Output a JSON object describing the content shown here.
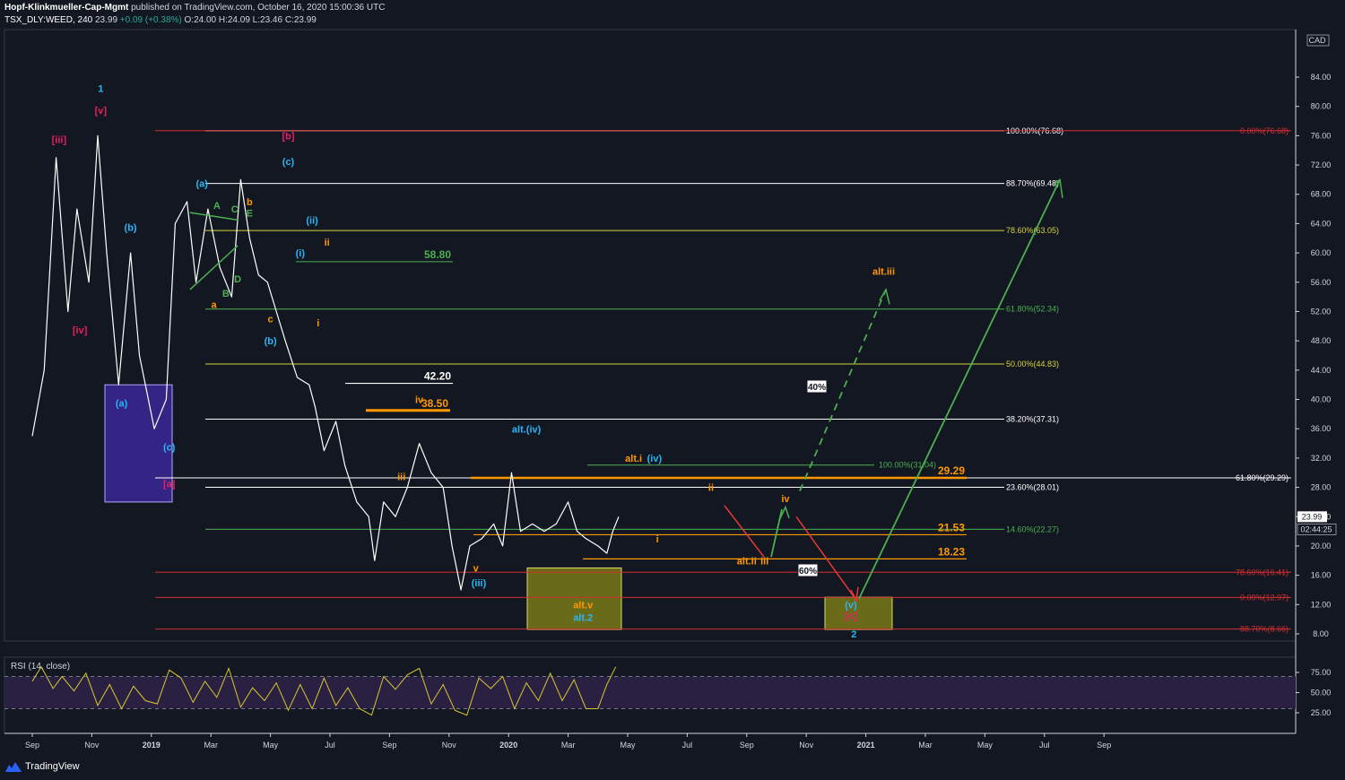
{
  "header": {
    "author": "Hopf-Klinkmueller-Cap-Mgmt",
    "published": "published on TradingView.com, October 16, 2020 15:00:36 UTC",
    "symbol": "TSX_DLY:WEED, 240",
    "last": "23.99",
    "change": "+0.09 (+0.38%)",
    "ohlc": "O:24.00 H:24.09 L:23.46 C:23.99"
  },
  "brand": {
    "name": "TradingView",
    "icon": "tradingview-logo-icon"
  },
  "axis": {
    "currency": "CAD",
    "y_ticks": [
      "84.00",
      "80.00",
      "76.00",
      "72.00",
      "68.00",
      "64.00",
      "60.00",
      "56.00",
      "52.00",
      "48.00",
      "44.00",
      "40.00",
      "36.00",
      "32.00",
      "28.00",
      "24.00",
      "20.00",
      "16.00",
      "12.00",
      "8.00"
    ],
    "y_values": [
      84,
      80,
      76,
      72,
      68,
      64,
      60,
      56,
      52,
      48,
      44,
      40,
      36,
      32,
      28,
      24,
      20,
      16,
      12,
      8
    ],
    "y_range": [
      6,
      87
    ],
    "price_tag": "23.99",
    "countdown": "02:44:25",
    "x_ticks": [
      "Sep",
      "Nov",
      "2019",
      "Mar",
      "May",
      "Jul",
      "Sep",
      "Nov",
      "2020",
      "Mar",
      "May",
      "Jul",
      "Sep",
      "Nov",
      "2021",
      "Mar",
      "May",
      "Jul",
      "Sep"
    ],
    "x_bold": [
      "2019",
      "2020",
      "2021"
    ]
  },
  "rsi": {
    "label": "RSI (14, close)",
    "ticks": [
      "75.00",
      "50.00",
      "25.00"
    ],
    "tick_values": [
      75,
      50,
      25
    ],
    "band": [
      30,
      70
    ],
    "range": [
      15,
      85
    ]
  },
  "chart_data": {
    "type": "line",
    "symbol": "TSX_DLY:WEED",
    "interval": "240",
    "ylabel": "CAD",
    "ylim": [
      6,
      87
    ],
    "price_path": [
      {
        "m": 0,
        "v": 35
      },
      {
        "m": 0.4,
        "v": 44
      },
      {
        "m": 0.8,
        "v": 73
      },
      {
        "m": 1.2,
        "v": 52
      },
      {
        "m": 1.5,
        "v": 66
      },
      {
        "m": 1.9,
        "v": 56
      },
      {
        "m": 2.2,
        "v": 76
      },
      {
        "m": 2.5,
        "v": 60
      },
      {
        "m": 2.9,
        "v": 42
      },
      {
        "m": 3.3,
        "v": 60
      },
      {
        "m": 3.6,
        "v": 46
      },
      {
        "m": 4.1,
        "v": 36
      },
      {
        "m": 4.5,
        "v": 40
      },
      {
        "m": 4.8,
        "v": 64
      },
      {
        "m": 5.2,
        "v": 67
      },
      {
        "m": 5.5,
        "v": 56
      },
      {
        "m": 5.9,
        "v": 66
      },
      {
        "m": 6.3,
        "v": 58
      },
      {
        "m": 6.7,
        "v": 54
      },
      {
        "m": 7.0,
        "v": 70
      },
      {
        "m": 7.3,
        "v": 62
      },
      {
        "m": 7.6,
        "v": 57
      },
      {
        "m": 7.9,
        "v": 56
      },
      {
        "m": 8.2,
        "v": 52
      },
      {
        "m": 8.5,
        "v": 48
      },
      {
        "m": 8.9,
        "v": 43
      },
      {
        "m": 9.3,
        "v": 42
      },
      {
        "m": 9.5,
        "v": 39
      },
      {
        "m": 9.8,
        "v": 33
      },
      {
        "m": 10.2,
        "v": 37
      },
      {
        "m": 10.5,
        "v": 31
      },
      {
        "m": 10.9,
        "v": 26
      },
      {
        "m": 11.3,
        "v": 24
      },
      {
        "m": 11.5,
        "v": 18
      },
      {
        "m": 11.8,
        "v": 26
      },
      {
        "m": 12.2,
        "v": 24
      },
      {
        "m": 12.6,
        "v": 28
      },
      {
        "m": 13.0,
        "v": 34
      },
      {
        "m": 13.4,
        "v": 30
      },
      {
        "m": 13.8,
        "v": 28
      },
      {
        "m": 14.1,
        "v": 20
      },
      {
        "m": 14.4,
        "v": 14
      },
      {
        "m": 14.7,
        "v": 20
      },
      {
        "m": 15.1,
        "v": 21
      },
      {
        "m": 15.5,
        "v": 23
      },
      {
        "m": 15.8,
        "v": 20
      },
      {
        "m": 16.1,
        "v": 30
      },
      {
        "m": 16.4,
        "v": 22
      },
      {
        "m": 16.8,
        "v": 23
      },
      {
        "m": 17.2,
        "v": 22
      },
      {
        "m": 17.6,
        "v": 23
      },
      {
        "m": 18.0,
        "v": 26
      },
      {
        "m": 18.3,
        "v": 22
      },
      {
        "m": 18.6,
        "v": 21
      },
      {
        "m": 19.0,
        "v": 20
      },
      {
        "m": 19.3,
        "v": 19
      },
      {
        "m": 19.5,
        "v": 22
      },
      {
        "m": 19.7,
        "v": 24
      }
    ],
    "rsi_path": [
      {
        "m": 0,
        "v": 64
      },
      {
        "m": 0.3,
        "v": 82
      },
      {
        "m": 0.7,
        "v": 55
      },
      {
        "m": 1.0,
        "v": 70
      },
      {
        "m": 1.4,
        "v": 52
      },
      {
        "m": 1.8,
        "v": 74
      },
      {
        "m": 2.2,
        "v": 34
      },
      {
        "m": 2.6,
        "v": 60
      },
      {
        "m": 3.0,
        "v": 30
      },
      {
        "m": 3.4,
        "v": 58
      },
      {
        "m": 3.8,
        "v": 40
      },
      {
        "m": 4.2,
        "v": 36
      },
      {
        "m": 4.6,
        "v": 78
      },
      {
        "m": 5.0,
        "v": 68
      },
      {
        "m": 5.4,
        "v": 38
      },
      {
        "m": 5.8,
        "v": 64
      },
      {
        "m": 6.2,
        "v": 44
      },
      {
        "m": 6.6,
        "v": 80
      },
      {
        "m": 7.0,
        "v": 32
      },
      {
        "m": 7.4,
        "v": 56
      },
      {
        "m": 7.8,
        "v": 40
      },
      {
        "m": 8.2,
        "v": 62
      },
      {
        "m": 8.6,
        "v": 28
      },
      {
        "m": 9.0,
        "v": 60
      },
      {
        "m": 9.4,
        "v": 30
      },
      {
        "m": 9.8,
        "v": 68
      },
      {
        "m": 10.2,
        "v": 34
      },
      {
        "m": 10.6,
        "v": 56
      },
      {
        "m": 11.0,
        "v": 30
      },
      {
        "m": 11.4,
        "v": 22
      },
      {
        "m": 11.8,
        "v": 70
      },
      {
        "m": 12.2,
        "v": 54
      },
      {
        "m": 12.6,
        "v": 72
      },
      {
        "m": 13.0,
        "v": 80
      },
      {
        "m": 13.4,
        "v": 36
      },
      {
        "m": 13.8,
        "v": 60
      },
      {
        "m": 14.2,
        "v": 28
      },
      {
        "m": 14.6,
        "v": 22
      },
      {
        "m": 15.0,
        "v": 68
      },
      {
        "m": 15.4,
        "v": 55
      },
      {
        "m": 15.8,
        "v": 70
      },
      {
        "m": 16.2,
        "v": 30
      },
      {
        "m": 16.6,
        "v": 62
      },
      {
        "m": 17.0,
        "v": 40
      },
      {
        "m": 17.4,
        "v": 74
      },
      {
        "m": 17.8,
        "v": 40
      },
      {
        "m": 18.2,
        "v": 66
      },
      {
        "m": 18.6,
        "v": 30
      },
      {
        "m": 19.0,
        "v": 30
      },
      {
        "m": 19.3,
        "v": 60
      },
      {
        "m": 19.6,
        "v": 82
      }
    ],
    "fib_levels": [
      {
        "label": "100.00%(76.68)",
        "value": 76.68,
        "color": "#ffffff"
      },
      {
        "label": "88.70%(69.48)",
        "value": 69.48,
        "color": "#ffffff"
      },
      {
        "label": "78.60%(63.05)",
        "value": 63.05,
        "color": "#d7d23a"
      },
      {
        "label": "61.80%(52.34)",
        "value": 52.34,
        "color": "#4caf50"
      },
      {
        "label": "50.00%(44.83)",
        "value": 44.83,
        "color": "#d7d23a"
      },
      {
        "label": "38.20%(37.31)",
        "value": 37.31,
        "color": "#ffffff"
      },
      {
        "label": "23.60%(28.01)",
        "value": 28.01,
        "color": "#ffffff"
      },
      {
        "label": "14.60%(22.27)",
        "value": 22.27,
        "color": "#4caf50"
      },
      {
        "label": "0.00%(76.68)",
        "value": 76.68,
        "color": "#d32f2f"
      },
      {
        "label": "78.60%(16.41)",
        "value": 16.41,
        "color": "#d32f2f"
      },
      {
        "label": "0.00%(12.97)",
        "value": 12.97,
        "color": "#d32f2f"
      },
      {
        "label": "88.70%(8.66)",
        "value": 8.66,
        "color": "#d32f2f"
      },
      {
        "label": "100.00%(31.04)",
        "value": 31.04,
        "color": "#4caf50"
      },
      {
        "label": "61.80%(29.29)",
        "value": 29.29,
        "color": "#ffffff"
      }
    ],
    "price_levels": [
      {
        "label": "58.80",
        "value": 58.8,
        "color": "#4caf50"
      },
      {
        "label": "42.20",
        "value": 42.2,
        "color": "#ffffff"
      },
      {
        "label": "38.50",
        "value": 38.5,
        "color": "#ff9800"
      },
      {
        "label": "29.29",
        "value": 29.29,
        "color": "#ff9800"
      },
      {
        "label": "21.53",
        "value": 21.53,
        "color": "#ff9800"
      },
      {
        "label": "18.23",
        "value": 18.23,
        "color": "#ff9800"
      }
    ],
    "wave_labels": [
      {
        "text": "1",
        "m": 2.3,
        "v": 82,
        "color": "#29b6f6"
      },
      {
        "text": "[v]",
        "m": 2.3,
        "v": 79,
        "color": "#e91e63"
      },
      {
        "text": "[iii]",
        "m": 0.9,
        "v": 75,
        "color": "#e91e63"
      },
      {
        "text": "[iv]",
        "m": 1.6,
        "v": 49,
        "color": "#e91e63"
      },
      {
        "text": "(b)",
        "m": 3.3,
        "v": 63,
        "color": "#29b6f6"
      },
      {
        "text": "(a)",
        "m": 3.0,
        "v": 39,
        "color": "#29b6f6"
      },
      {
        "text": "(c)",
        "m": 4.6,
        "v": 33,
        "color": "#29b6f6"
      },
      {
        "text": "[a]",
        "m": 4.6,
        "v": 28,
        "color": "#e91e63"
      },
      {
        "text": "(a)",
        "m": 5.7,
        "v": 69,
        "color": "#29b6f6"
      },
      {
        "text": "A",
        "m": 6.2,
        "v": 66,
        "color": "#4caf50"
      },
      {
        "text": "C",
        "m": 6.8,
        "v": 65.5,
        "color": "#4caf50"
      },
      {
        "text": "b",
        "m": 7.3,
        "v": 66.5,
        "color": "#ff9800"
      },
      {
        "text": "E",
        "m": 7.3,
        "v": 65,
        "color": "#4caf50"
      },
      {
        "text": "B",
        "m": 6.5,
        "v": 54,
        "color": "#4caf50"
      },
      {
        "text": "D",
        "m": 6.9,
        "v": 56,
        "color": "#4caf50"
      },
      {
        "text": "a",
        "m": 6.1,
        "v": 52.5,
        "color": "#ff9800"
      },
      {
        "text": "c",
        "m": 8.0,
        "v": 50.5,
        "color": "#ff9800"
      },
      {
        "text": "(b)",
        "m": 8.0,
        "v": 47.5,
        "color": "#29b6f6"
      },
      {
        "text": "[b]",
        "m": 8.6,
        "v": 75.5,
        "color": "#e91e63"
      },
      {
        "text": "(c)",
        "m": 8.6,
        "v": 72,
        "color": "#29b6f6"
      },
      {
        "text": "(ii)",
        "m": 9.4,
        "v": 64,
        "color": "#29b6f6"
      },
      {
        "text": "ii",
        "m": 9.9,
        "v": 61,
        "color": "#ff9800"
      },
      {
        "text": "(i)",
        "m": 9.0,
        "v": 59.5,
        "color": "#29b6f6"
      },
      {
        "text": "i",
        "m": 9.6,
        "v": 50,
        "color": "#ff9800"
      },
      {
        "text": "iv",
        "m": 13.0,
        "v": 39.5,
        "color": "#ff9800"
      },
      {
        "text": "iii",
        "m": 12.4,
        "v": 29,
        "color": "#ff9800"
      },
      {
        "text": "v",
        "m": 14.9,
        "v": 16.5,
        "color": "#ff9800"
      },
      {
        "text": "(iii)",
        "m": 15.0,
        "v": 14.5,
        "color": "#29b6f6"
      },
      {
        "text": "alt.(iv)",
        "m": 16.6,
        "v": 35.5,
        "color": "#29b6f6"
      },
      {
        "text": "alt.i",
        "m": 20.2,
        "v": 31.5,
        "color": "#ff9800"
      },
      {
        "text": "(iv)",
        "m": 20.9,
        "v": 31.5,
        "color": "#29b6f6"
      },
      {
        "text": "i",
        "m": 21.0,
        "v": 20.5,
        "color": "#ff9800"
      },
      {
        "text": "ii",
        "m": 22.8,
        "v": 27.5,
        "color": "#ff9800"
      },
      {
        "text": "alt.ii",
        "m": 24.0,
        "v": 17.5,
        "color": "#ff9800"
      },
      {
        "text": "iii",
        "m": 24.6,
        "v": 17.5,
        "color": "#ff9800"
      },
      {
        "text": "iv",
        "m": 25.3,
        "v": 26,
        "color": "#ff9800"
      },
      {
        "text": "alt.v",
        "m": 18.5,
        "v": 11.5,
        "color": "#ff9800"
      },
      {
        "text": "alt.2",
        "m": 18.5,
        "v": 9.8,
        "color": "#29b6f6"
      },
      {
        "text": "alt.iii",
        "m": 28.6,
        "v": 57,
        "color": "#ff9800"
      },
      {
        "text": "(v)",
        "m": 27.5,
        "v": 11.5,
        "color": "#29b6f6"
      },
      {
        "text": "[c]",
        "m": 27.5,
        "v": 10,
        "color": "#e91e63"
      },
      {
        "text": "2",
        "m": 27.6,
        "v": 7.5,
        "color": "#29b6f6"
      }
    ],
    "probabilities": [
      {
        "label": "40%",
        "scenario": "alt.iii"
      },
      {
        "label": "60%",
        "scenario": "2"
      }
    ],
    "colors": {
      "background": "#131722",
      "price": "#ffffff",
      "rsi": "#d7c62e",
      "rsi_fill": "#2a2142",
      "green": "#4caf50",
      "red": "#e53935",
      "orange": "#ff9800",
      "blue": "#29b6f6",
      "magenta": "#e91e63",
      "box_purple": "#3f2aa8",
      "box_olive": "#7a7a16"
    }
  }
}
